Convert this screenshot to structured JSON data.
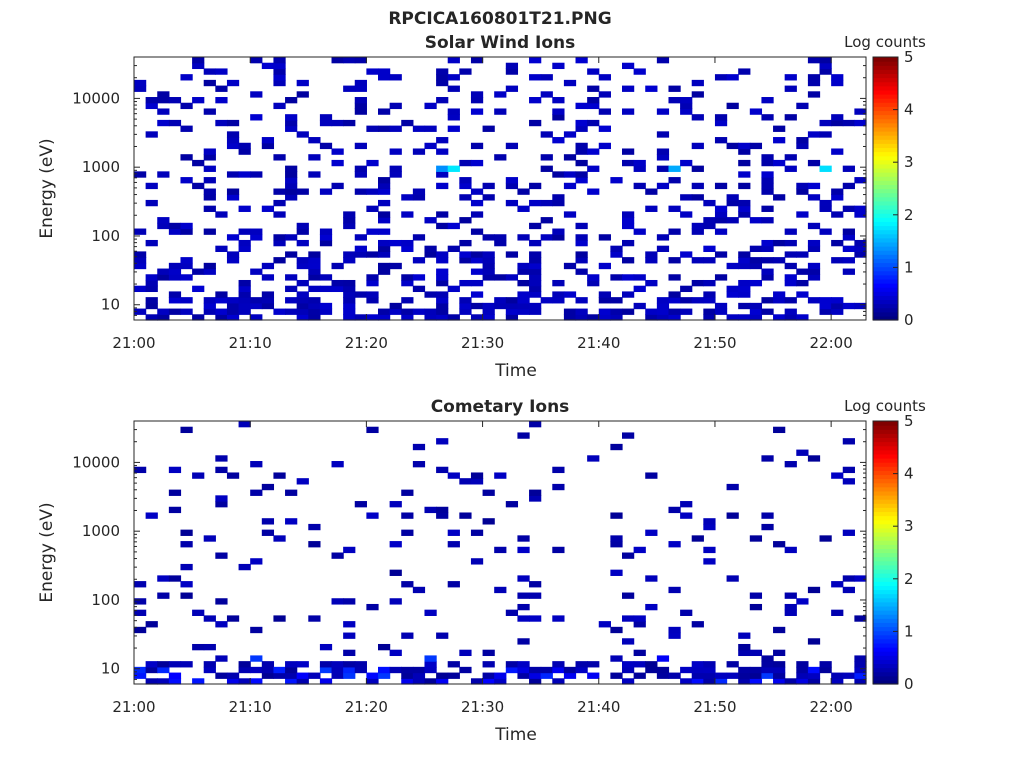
{
  "page": {
    "title": "RPCICA160801T21.PNG"
  },
  "chart_data": [
    {
      "type": "heatmap",
      "title": "Solar Wind Ions",
      "xlabel": "Time",
      "ylabel": "Energy (eV)",
      "x_ticks": [
        "21:00",
        "21:10",
        "21:20",
        "21:30",
        "21:40",
        "21:50",
        "22:00"
      ],
      "x_range": [
        "21:00",
        "22:03"
      ],
      "y_scale": "log",
      "y_range": [
        6,
        40000
      ],
      "y_ticks": [
        {
          "value": 10,
          "label": "10"
        },
        {
          "value": 100,
          "label": "100"
        },
        {
          "value": 1000,
          "label": "1000"
        },
        {
          "value": 10000,
          "label": "10000"
        }
      ],
      "colorbar": {
        "label": "Log counts",
        "range": [
          0,
          5
        ],
        "ticks": [
          "0",
          "1",
          "2",
          "3",
          "4",
          "5"
        ],
        "colormap": "jet"
      },
      "pattern": {
        "density": 0.42,
        "low_energy_fill": 0.55,
        "peak_energy_eV": 900,
        "peak_value": 1.9,
        "typical_value": 0.15
      }
    },
    {
      "type": "heatmap",
      "title": "Cometary Ions",
      "xlabel": "Time",
      "ylabel": "Energy (eV)",
      "x_ticks": [
        "21:00",
        "21:10",
        "21:20",
        "21:30",
        "21:40",
        "21:50",
        "22:00"
      ],
      "x_range": [
        "21:00",
        "22:03"
      ],
      "y_scale": "log",
      "y_range": [
        6,
        40000
      ],
      "y_ticks": [
        {
          "value": 10,
          "label": "10"
        },
        {
          "value": 100,
          "label": "100"
        },
        {
          "value": 1000,
          "label": "1000"
        },
        {
          "value": 10000,
          "label": "10000"
        }
      ],
      "colorbar": {
        "label": "Log counts",
        "range": [
          0,
          5
        ],
        "ticks": [
          "0",
          "1",
          "2",
          "3",
          "4",
          "5"
        ],
        "colormap": "jet"
      },
      "pattern": {
        "density": 0.12,
        "low_energy_fill": 0.6,
        "peak_energy_eV": 12,
        "peak_value": 0.9,
        "typical_value": 0.1
      }
    }
  ]
}
